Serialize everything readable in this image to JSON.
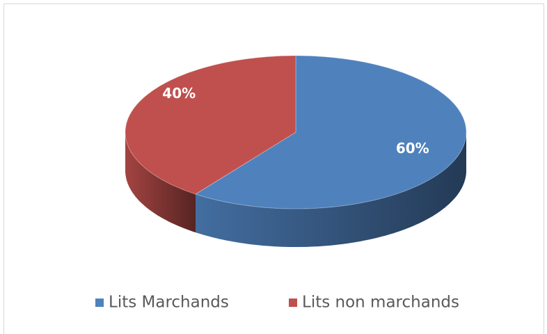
{
  "chart_data": {
    "type": "pie",
    "categories": [
      "Lits Marchands",
      "Lits non marchands"
    ],
    "values": [
      60,
      40
    ],
    "value_labels": [
      "60%",
      "40%"
    ],
    "colors": [
      "#4f81bd",
      "#c0504d"
    ],
    "legend": "bottom"
  }
}
